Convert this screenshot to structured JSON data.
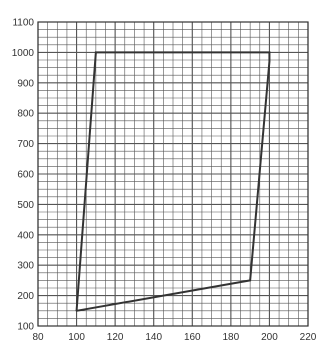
{
  "chart_data": {
    "type": "line",
    "title": "",
    "xlabel": "",
    "ylabel": "",
    "xlim": [
      80,
      220
    ],
    "ylim": [
      100,
      1100
    ],
    "grid": true,
    "minor_grid": {
      "x_step": 5,
      "y_step": 25
    },
    "x_ticks": [
      "80",
      "100",
      "120",
      "140",
      "160",
      "180",
      "200",
      "220"
    ],
    "y_ticks": [
      "100",
      "200",
      "300",
      "400",
      "500",
      "600",
      "700",
      "800",
      "900",
      "1000",
      "1100"
    ],
    "series": [
      {
        "points": [
          {
            "x": 100,
            "y": 150
          },
          {
            "x": 110,
            "y": 1000
          },
          {
            "x": 200,
            "y": 1000
          },
          {
            "x": 200,
            "y": 970
          },
          {
            "x": 190,
            "y": 250
          },
          {
            "x": 100,
            "y": 150
          }
        ],
        "color": "#333333"
      }
    ],
    "colors": {
      "grid": "#555555",
      "axis": "#333333",
      "line": "#333333"
    }
  }
}
